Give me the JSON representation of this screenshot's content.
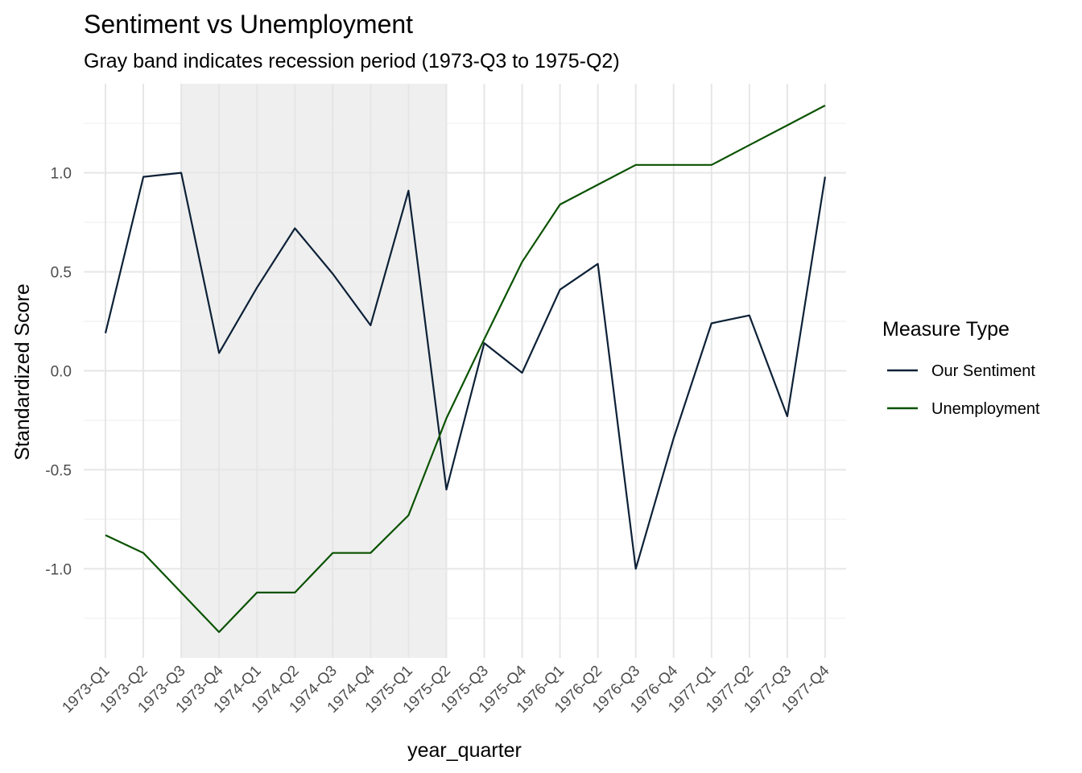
{
  "chart_data": {
    "type": "line",
    "title": "Sentiment vs Unemployment",
    "subtitle": "Gray band indicates recession period (1973-Q3 to 1975-Q2)",
    "xlabel": "year_quarter",
    "ylabel": "Standardized Score",
    "categories": [
      "1973-Q1",
      "1973-Q2",
      "1973-Q3",
      "1973-Q4",
      "1974-Q1",
      "1974-Q2",
      "1974-Q3",
      "1974-Q4",
      "1975-Q1",
      "1975-Q2",
      "1975-Q3",
      "1975-Q4",
      "1976-Q1",
      "1976-Q2",
      "1976-Q3",
      "1976-Q4",
      "1977-Q1",
      "1977-Q2",
      "1977-Q3",
      "1977-Q4"
    ],
    "ylim": [
      -1.45,
      1.45
    ],
    "y_ticks": [
      -1.0,
      -0.5,
      0.0,
      0.5,
      1.0
    ],
    "y_tick_labels": [
      "-1.0",
      "-0.5",
      "0.0",
      "0.5",
      "1.0"
    ],
    "grid": true,
    "recession_band": {
      "start": "1973-Q3",
      "end": "1975-Q2",
      "color": "#efefef"
    },
    "legend": {
      "title": "Measure Type",
      "placement": "right"
    },
    "series": [
      {
        "name": "Our Sentiment",
        "color": "#0d2137",
        "values": [
          0.19,
          0.98,
          1.0,
          0.09,
          0.42,
          0.72,
          0.49,
          0.23,
          0.91,
          -0.6,
          0.14,
          -0.01,
          0.41,
          0.54,
          -1.0,
          -0.34,
          0.24,
          0.28,
          -0.23,
          0.98
        ]
      },
      {
        "name": "Unemployment",
        "color": "#0a5200",
        "values": [
          -0.83,
          -0.92,
          -1.12,
          -1.32,
          -1.12,
          -1.12,
          -0.92,
          -0.92,
          -0.73,
          -0.24,
          0.16,
          0.55,
          0.84,
          0.94,
          1.04,
          1.04,
          1.04,
          1.14,
          1.24,
          1.34
        ]
      }
    ]
  }
}
